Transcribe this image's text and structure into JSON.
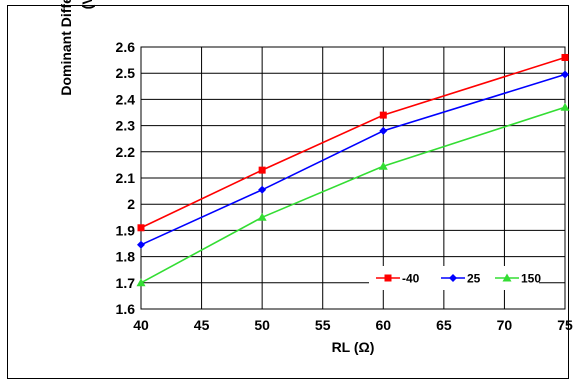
{
  "chart_data": {
    "type": "line",
    "title": "",
    "xlabel": "RL (Ω)",
    "ylabel_lines": [
      "Dominant Differential Output",
      "(V)"
    ],
    "x": [
      40,
      50,
      60,
      75
    ],
    "xlim": [
      40,
      75
    ],
    "ylim": [
      1.6,
      2.6
    ],
    "xticks": [
      "40",
      "45",
      "50",
      "55",
      "60",
      "65",
      "70",
      "75"
    ],
    "yticks": [
      "1.6",
      "1.7",
      "1.8",
      "1.9",
      "2",
      "2.1",
      "2.2",
      "2.3",
      "2.4",
      "2.5",
      "2.6"
    ],
    "grid": true,
    "legend_position": "lower-right",
    "series": [
      {
        "name": "-40",
        "color": "#ff0000",
        "marker": "square",
        "values": [
          1.91,
          2.13,
          2.34,
          2.56
        ]
      },
      {
        "name": "25",
        "color": "#0000ff",
        "marker": "diamond",
        "values": [
          1.845,
          2.055,
          2.28,
          2.495
        ]
      },
      {
        "name": "150",
        "color": "#33dd33",
        "marker": "triangle",
        "values": [
          1.7,
          1.95,
          2.145,
          2.37
        ]
      }
    ]
  }
}
